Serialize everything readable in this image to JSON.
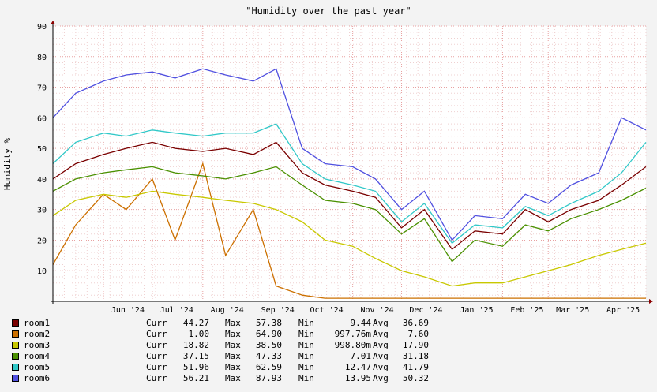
{
  "chart_data": {
    "type": "line",
    "title": "\"Humidity over the past year\"",
    "ylabel": "Humidity %",
    "xlabel": "",
    "ylim": [
      0,
      90
    ],
    "y_ticks": [
      10,
      20,
      30,
      40,
      50,
      60,
      70,
      80,
      90
    ],
    "x_tick_labels": [
      "Jun '24",
      "Jul '24",
      "Aug '24",
      "Sep '24",
      "Oct '24",
      "Nov '24",
      "Dec '24",
      "Jan '25",
      "Feb '25",
      "Mar '25",
      "Apr '25"
    ],
    "x_tick_dates": [
      "2024-06-01",
      "2024-07-01",
      "2024-08-01",
      "2024-09-01",
      "2024-10-01",
      "2024-11-01",
      "2024-12-01",
      "2025-01-01",
      "2025-02-01",
      "2025-03-01",
      "2025-04-01"
    ],
    "x_range": [
      "2024-05-01",
      "2025-04-30"
    ],
    "grid": true,
    "legend_position": "bottom",
    "stat_labels": {
      "curr": "Curr",
      "max": "Max",
      "min": "Min",
      "avg": "Avg"
    },
    "series": [
      {
        "name": "room1",
        "color": "#7a0000",
        "stats": {
          "curr": "44.27",
          "max": "57.38",
          "min": "9.44",
          "avg": "36.69"
        },
        "x": [
          "2024-05-01",
          "2024-05-15",
          "2024-06-01",
          "2024-06-15",
          "2024-07-01",
          "2024-07-15",
          "2024-08-01",
          "2024-08-15",
          "2024-09-01",
          "2024-09-15",
          "2024-10-01",
          "2024-10-15",
          "2024-11-01",
          "2024-11-15",
          "2024-12-01",
          "2024-12-15",
          "2025-01-01",
          "2025-01-15",
          "2025-02-01",
          "2025-02-15",
          "2025-03-01",
          "2025-03-15",
          "2025-04-01",
          "2025-04-15",
          "2025-04-30"
        ],
        "y": [
          40,
          45,
          48,
          50,
          52,
          50,
          49,
          50,
          48,
          52,
          42,
          38,
          36,
          34,
          24,
          30,
          17,
          23,
          22,
          30,
          26,
          30,
          33,
          38,
          44
        ]
      },
      {
        "name": "room2",
        "color": "#cc7000",
        "stats": {
          "curr": "1.00",
          "max": "64.90",
          "min": "997.76m",
          "avg": "7.60"
        },
        "x": [
          "2024-05-01",
          "2024-05-15",
          "2024-06-01",
          "2024-06-15",
          "2024-07-01",
          "2024-07-15",
          "2024-08-01",
          "2024-08-15",
          "2024-09-01",
          "2024-09-15",
          "2024-10-01",
          "2024-10-15",
          "2024-11-01",
          "2024-11-15",
          "2024-12-01",
          "2024-12-15",
          "2025-01-01",
          "2025-01-15",
          "2025-02-01",
          "2025-02-15",
          "2025-03-01",
          "2025-03-15",
          "2025-04-01",
          "2025-04-15",
          "2025-04-30"
        ],
        "y": [
          12,
          25,
          35,
          30,
          40,
          20,
          45,
          15,
          30,
          5,
          2,
          1,
          1,
          1,
          1,
          1,
          1,
          1,
          1,
          1,
          1,
          1,
          1,
          1,
          1
        ]
      },
      {
        "name": "room3",
        "color": "#c8c800",
        "stats": {
          "curr": "18.82",
          "max": "38.50",
          "min": "998.80m",
          "avg": "17.90"
        },
        "x": [
          "2024-05-01",
          "2024-05-15",
          "2024-06-01",
          "2024-06-15",
          "2024-07-01",
          "2024-07-15",
          "2024-08-01",
          "2024-08-15",
          "2024-09-01",
          "2024-09-15",
          "2024-10-01",
          "2024-10-15",
          "2024-11-01",
          "2024-11-15",
          "2024-12-01",
          "2024-12-15",
          "2025-01-01",
          "2025-01-15",
          "2025-02-01",
          "2025-02-15",
          "2025-03-01",
          "2025-03-15",
          "2025-04-01",
          "2025-04-15",
          "2025-04-30"
        ],
        "y": [
          28,
          33,
          35,
          34,
          36,
          35,
          34,
          33,
          32,
          30,
          26,
          20,
          18,
          14,
          10,
          8,
          5,
          6,
          6,
          8,
          10,
          12,
          15,
          17,
          19
        ]
      },
      {
        "name": "room4",
        "color": "#4a9000",
        "stats": {
          "curr": "37.15",
          "max": "47.33",
          "min": "7.01",
          "avg": "31.18"
        },
        "x": [
          "2024-05-01",
          "2024-05-15",
          "2024-06-01",
          "2024-06-15",
          "2024-07-01",
          "2024-07-15",
          "2024-08-01",
          "2024-08-15",
          "2024-09-01",
          "2024-09-15",
          "2024-10-01",
          "2024-10-15",
          "2024-11-01",
          "2024-11-15",
          "2024-12-01",
          "2024-12-15",
          "2025-01-01",
          "2025-01-15",
          "2025-02-01",
          "2025-02-15",
          "2025-03-01",
          "2025-03-15",
          "2025-04-01",
          "2025-04-15",
          "2025-04-30"
        ],
        "y": [
          36,
          40,
          42,
          43,
          44,
          42,
          41,
          40,
          42,
          44,
          38,
          33,
          32,
          30,
          22,
          27,
          13,
          20,
          18,
          25,
          23,
          27,
          30,
          33,
          37
        ]
      },
      {
        "name": "room5",
        "color": "#30c8c8",
        "stats": {
          "curr": "51.96",
          "max": "62.59",
          "min": "12.47",
          "avg": "41.79"
        },
        "x": [
          "2024-05-01",
          "2024-05-15",
          "2024-06-01",
          "2024-06-15",
          "2024-07-01",
          "2024-07-15",
          "2024-08-01",
          "2024-08-15",
          "2024-09-01",
          "2024-09-15",
          "2024-10-01",
          "2024-10-15",
          "2024-11-01",
          "2024-11-15",
          "2024-12-01",
          "2024-12-15",
          "2025-01-01",
          "2025-01-15",
          "2025-02-01",
          "2025-02-15",
          "2025-03-01",
          "2025-03-15",
          "2025-04-01",
          "2025-04-15",
          "2025-04-30"
        ],
        "y": [
          45,
          52,
          55,
          54,
          56,
          55,
          54,
          55,
          55,
          58,
          45,
          40,
          38,
          36,
          26,
          32,
          19,
          25,
          24,
          31,
          28,
          32,
          36,
          42,
          52
        ]
      },
      {
        "name": "room6",
        "color": "#5050e0",
        "stats": {
          "curr": "56.21",
          "max": "87.93",
          "min": "13.95",
          "avg": "50.32"
        },
        "x": [
          "2024-05-01",
          "2024-05-15",
          "2024-06-01",
          "2024-06-15",
          "2024-07-01",
          "2024-07-15",
          "2024-08-01",
          "2024-08-15",
          "2024-09-01",
          "2024-09-15",
          "2024-10-01",
          "2024-10-15",
          "2024-11-01",
          "2024-11-15",
          "2024-12-01",
          "2024-12-15",
          "2025-01-01",
          "2025-01-15",
          "2025-02-01",
          "2025-02-15",
          "2025-03-01",
          "2025-03-15",
          "2025-04-01",
          "2025-04-15",
          "2025-04-30"
        ],
        "y": [
          60,
          68,
          72,
          74,
          75,
          73,
          76,
          74,
          72,
          76,
          50,
          45,
          44,
          40,
          30,
          36,
          20,
          28,
          27,
          35,
          32,
          38,
          42,
          60,
          56
        ]
      }
    ]
  }
}
